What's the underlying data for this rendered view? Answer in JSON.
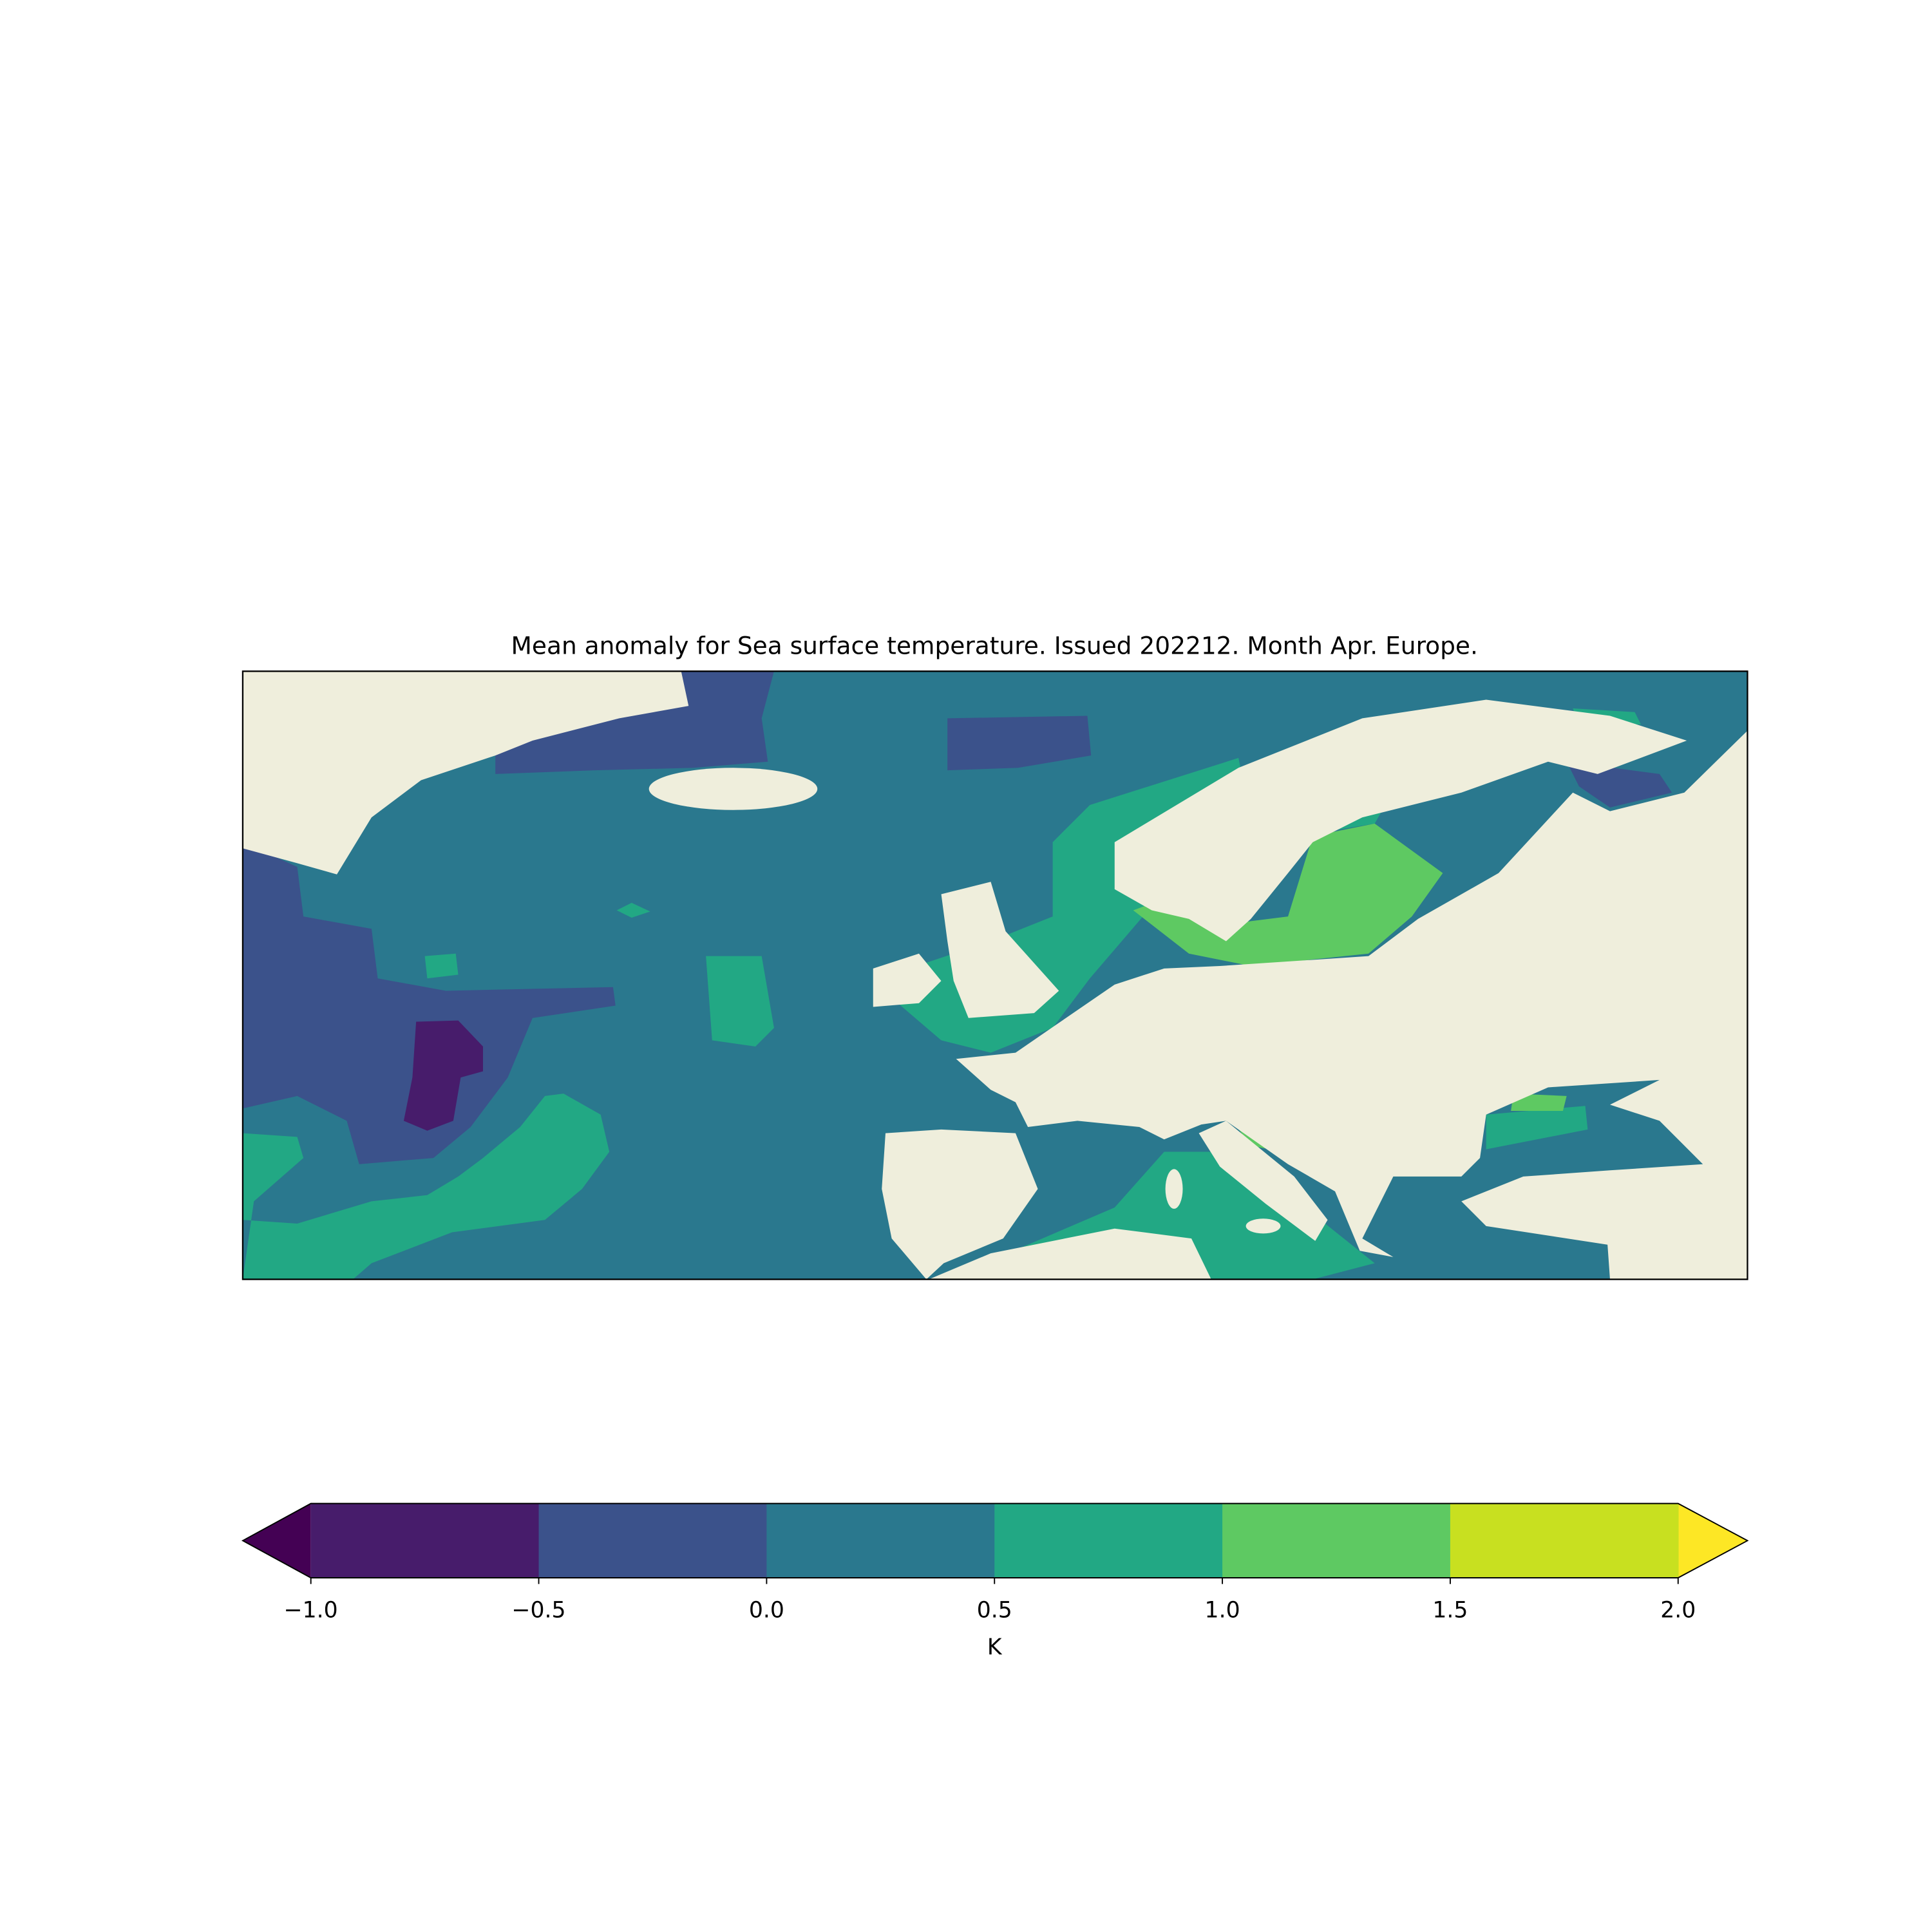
{
  "chart_data": {
    "type": "contour-map",
    "title": "Mean anomaly for Sea surface temperature. Issued 202212. Month Apr. Europe.",
    "land_color": "#efeedc",
    "colorbar": {
      "label": "K",
      "ticks": [
        {
          "value": -1,
          "label": "−1.0"
        },
        {
          "value": -0.5,
          "label": "−0.5"
        },
        {
          "value": 0,
          "label": "0.0"
        },
        0.5,
        {
          "value": 1,
          "label": "1.0"
        },
        1.5,
        {
          "value": 2,
          "label": "2.0"
        }
      ],
      "colors": [
        "#471c6b",
        "#3b528b",
        "#2a788e",
        "#22a884",
        "#5ec962",
        "#c8e020"
      ],
      "under_color": "#440154",
      "over_color": "#fde725"
    }
  }
}
